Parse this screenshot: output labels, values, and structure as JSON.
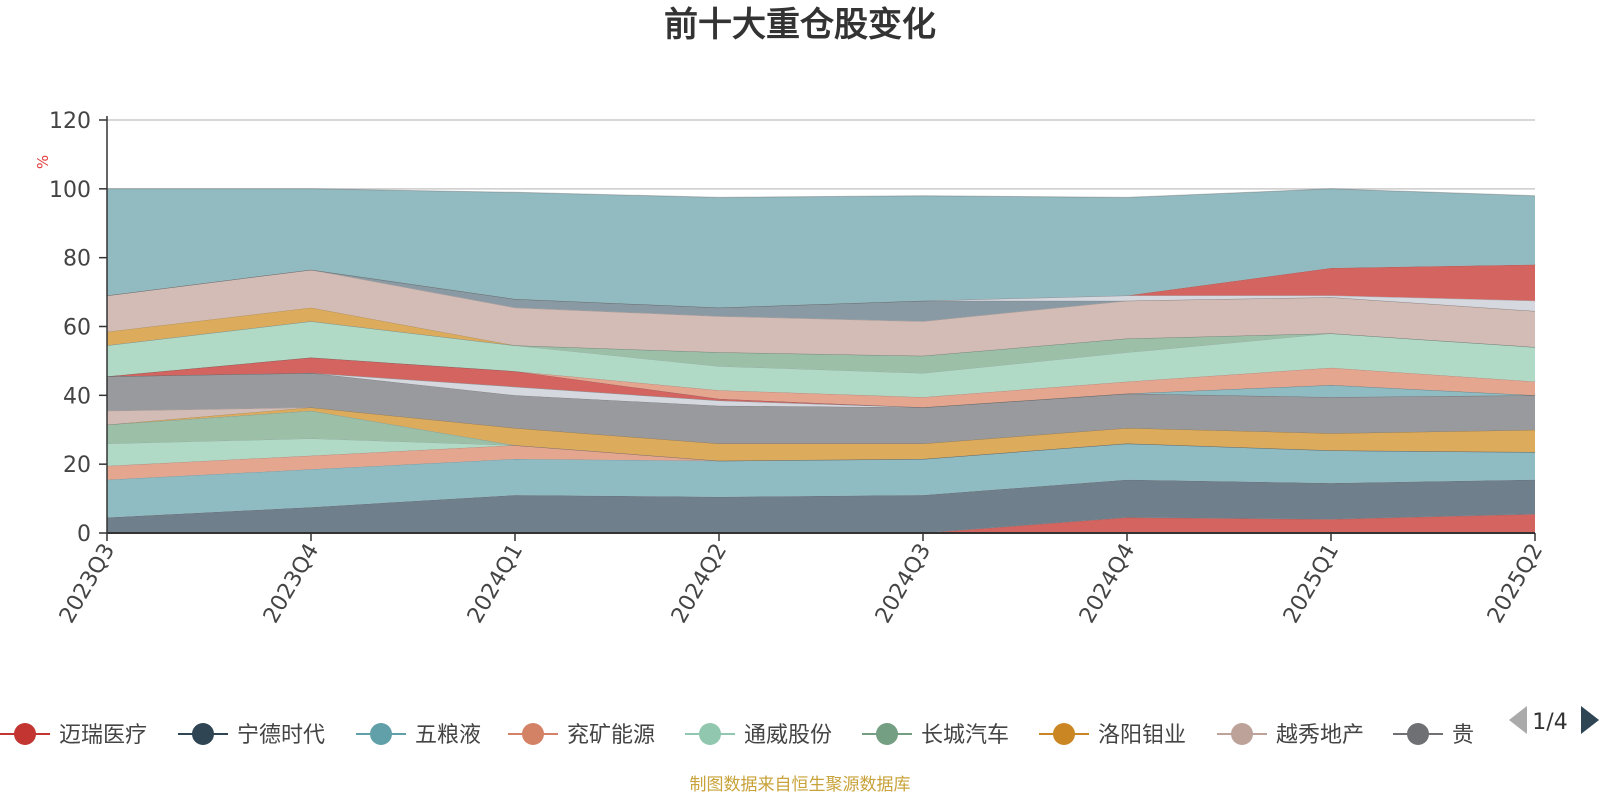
{
  "chart_data": {
    "type": "area",
    "title": "前十大重仓股变化",
    "ylabel": "%",
    "ylim": [
      0,
      120
    ],
    "yticks": [
      "0",
      "20",
      "40",
      "60",
      "80",
      "100",
      "120"
    ],
    "categories": [
      "2023Q3",
      "2023Q4",
      "2024Q1",
      "2024Q2",
      "2024Q3",
      "2024Q4",
      "2025Q1",
      "2025Q2"
    ],
    "series": [
      {
        "name": "迈瑞医疗",
        "color": "#d9534f",
        "values": [
          0,
          0,
          0,
          0,
          0,
          4.5,
          4,
          5.5
        ]
      },
      {
        "name": "宁德时代",
        "color": "#5d6f80",
        "values": [
          4.5,
          7.5,
          11,
          10.5,
          11,
          11,
          10.5,
          10
        ]
      },
      {
        "name": "五粮液",
        "color": "#7fb2bb",
        "values": [
          11,
          11,
          10.5,
          10.5,
          10.5,
          10.5,
          9.5,
          8
        ]
      },
      {
        "name": "兖矿能源",
        "color": "#e5a088",
        "values": [
          4,
          4,
          4,
          0,
          0,
          0,
          0,
          0
        ]
      },
      {
        "name": "通威股份",
        "color": "#a6d6bf",
        "values": [
          6.5,
          5,
          0,
          0,
          0,
          0,
          0,
          0
        ]
      },
      {
        "name": "长城汽车",
        "color": "#8fb59c",
        "values": [
          5.5,
          8,
          0,
          0,
          0,
          0,
          0,
          0
        ]
      },
      {
        "name": "洛阳钼业",
        "color": "#dba451",
        "values": [
          0,
          1,
          5,
          5,
          4.5,
          4.5,
          5,
          6.5
        ]
      },
      {
        "name": "越秀地产",
        "color": "#cdb5ad",
        "values": [
          4,
          0,
          0,
          0,
          0,
          0,
          0,
          0
        ]
      }
    ],
    "legend": {
      "position": "bottom",
      "items": [
        {
          "name": "迈瑞医疗",
          "color": "#c23531"
        },
        {
          "name": "宁德时代",
          "color": "#2f4554"
        },
        {
          "name": "五粮液",
          "color": "#61a0a8"
        },
        {
          "name": "兖矿能源",
          "color": "#d48265"
        },
        {
          "name": "通威股份",
          "color": "#91c7ae"
        },
        {
          "name": "长城汽车",
          "color": "#749f83"
        },
        {
          "name": "洛阳钼业",
          "color": "#ca8622"
        },
        {
          "name": "越秀地产",
          "color": "#bda29a"
        },
        {
          "name": "贵",
          "color": "#6e7074"
        }
      ]
    },
    "layers": [
      {
        "color": "#d4645f",
        "lower": [
          0,
          0,
          0,
          0,
          0,
          0,
          0,
          0
        ],
        "upper": [
          0,
          0,
          0,
          0,
          0,
          4.5,
          4,
          5.5
        ]
      },
      {
        "color": "#6f7f8c",
        "lower": [
          0,
          0,
          0,
          0,
          0,
          4.5,
          4,
          5.5
        ],
        "upper": [
          4.5,
          7.5,
          11,
          10.5,
          11,
          15.5,
          14.5,
          15.5
        ]
      },
      {
        "color": "#8fbcc3",
        "lower": [
          4.5,
          7.5,
          11,
          10.5,
          11,
          15.5,
          14.5,
          15.5
        ],
        "upper": [
          15.5,
          18.5,
          21.5,
          21,
          21.5,
          26,
          24,
          23.5
        ]
      },
      {
        "color": "#e5a690",
        "lower": [
          15.5,
          18.5,
          21.5,
          21,
          21.5,
          26,
          24,
          23.5
        ],
        "upper": [
          19.5,
          22.5,
          25.5,
          21,
          21.5,
          26,
          24,
          23.5
        ]
      },
      {
        "color": "#b0dac6",
        "lower": [
          19.5,
          22.5,
          25.5,
          21,
          21.5,
          26,
          24,
          23.5
        ],
        "upper": [
          26,
          27.5,
          25.5,
          21,
          21.5,
          26,
          24,
          23.5
        ]
      },
      {
        "color": "#9cbfa8",
        "lower": [
          26,
          27.5,
          25.5,
          21,
          21.5,
          26,
          24,
          23.5
        ],
        "upper": [
          31.5,
          35.5,
          25.5,
          21,
          21.5,
          26,
          24,
          23.5
        ]
      },
      {
        "color": "#ddab5c",
        "lower": [
          31.5,
          35.5,
          25.5,
          21,
          21.5,
          26,
          24,
          23.5
        ],
        "upper": [
          31.5,
          36.5,
          30.5,
          26,
          26,
          30.5,
          29,
          30
        ]
      },
      {
        "color": "#d3bcb5",
        "lower": [
          31.5,
          36.5,
          30.5,
          26,
          26,
          30.5,
          29,
          30
        ],
        "upper": [
          35.5,
          36.5,
          30.5,
          26,
          26,
          30.5,
          29,
          30
        ]
      },
      {
        "color": "#999a9e",
        "lower": [
          35.5,
          36.5,
          30.5,
          26,
          26,
          30.5,
          29,
          30
        ],
        "upper": [
          45.5,
          46.5,
          40,
          37,
          36.5,
          40.5,
          39.5,
          40
        ]
      },
      {
        "color": "#d5d8df",
        "lower": [
          45.5,
          46.5,
          40,
          37,
          36.5,
          40.5,
          39.5,
          40
        ],
        "upper": [
          45.5,
          46.5,
          42.5,
          38.5,
          36.5,
          40.5,
          39.5,
          40
        ]
      },
      {
        "color": "#8fbcc3",
        "lower": [
          45.5,
          46.5,
          42.5,
          38.5,
          36.5,
          40.5,
          39.5,
          40
        ],
        "upper": [
          45.5,
          46.5,
          42.5,
          38.5,
          36.5,
          40.5,
          43,
          40
        ]
      },
      {
        "color": "#d4645f",
        "lower": [
          45.5,
          46.5,
          42.5,
          38.5,
          36.5,
          40.5,
          43,
          40
        ],
        "upper": [
          45.5,
          51,
          47,
          39,
          36.5,
          40.5,
          43,
          40
        ]
      },
      {
        "color": "#e5a690",
        "lower": [
          45.5,
          51,
          47,
          39,
          36.5,
          40.5,
          43,
          40
        ],
        "upper": [
          45.5,
          51,
          47,
          41.5,
          39.5,
          44,
          48,
          44
        ]
      },
      {
        "color": "#b0dac6",
        "lower": [
          45.5,
          51,
          47,
          41.5,
          39.5,
          44,
          48,
          44
        ],
        "upper": [
          54.5,
          61.5,
          54.5,
          48.5,
          46.5,
          52.5,
          58,
          54
        ]
      },
      {
        "color": "#9cbfa8",
        "lower": [
          54.5,
          61.5,
          54.5,
          48.5,
          46.5,
          52.5,
          58,
          54
        ],
        "upper": [
          54.5,
          61.5,
          54.5,
          52.5,
          51.5,
          56.5,
          58,
          54
        ]
      },
      {
        "color": "#ddab5c",
        "lower": [
          54.5,
          61.5,
          54.5,
          52.5,
          51.5,
          56.5,
          58,
          54
        ],
        "upper": [
          58.5,
          65.5,
          54.5,
          52.5,
          51.5,
          56.5,
          58,
          54
        ]
      },
      {
        "color": "#d3bcb5",
        "lower": [
          58.5,
          65.5,
          54.5,
          52.5,
          51.5,
          56.5,
          58,
          54
        ],
        "upper": [
          69,
          76.5,
          65.5,
          63,
          61.5,
          67.5,
          68.5,
          64.5
        ]
      },
      {
        "color": "#8a9aa4",
        "lower": [
          69,
          76.5,
          65.5,
          63,
          61.5,
          67.5,
          68.5,
          64.5
        ],
        "upper": [
          69,
          76.5,
          68,
          65.5,
          67.5,
          67.5,
          68.5,
          64.5
        ]
      },
      {
        "color": "#d5d8df",
        "lower": [
          69,
          76.5,
          68,
          65.5,
          67.5,
          67.5,
          68.5,
          64.5
        ],
        "upper": [
          69,
          76.5,
          68,
          65.5,
          67.5,
          69,
          69,
          67.5
        ]
      },
      {
        "color": "#d4645f",
        "lower": [
          69,
          76.5,
          68,
          65.5,
          67.5,
          69,
          69,
          67.5
        ],
        "upper": [
          69,
          76.5,
          68,
          65.5,
          67.5,
          69,
          77,
          78
        ]
      },
      {
        "color": "#92bac1",
        "lower": [
          69,
          76.5,
          68,
          65.5,
          67.5,
          69,
          77,
          78
        ],
        "upper": [
          100,
          100,
          99,
          97.5,
          98,
          97.5,
          100,
          98
        ]
      }
    ],
    "source": "制图数据来自恒生聚源数据库",
    "pager": "1/4"
  }
}
